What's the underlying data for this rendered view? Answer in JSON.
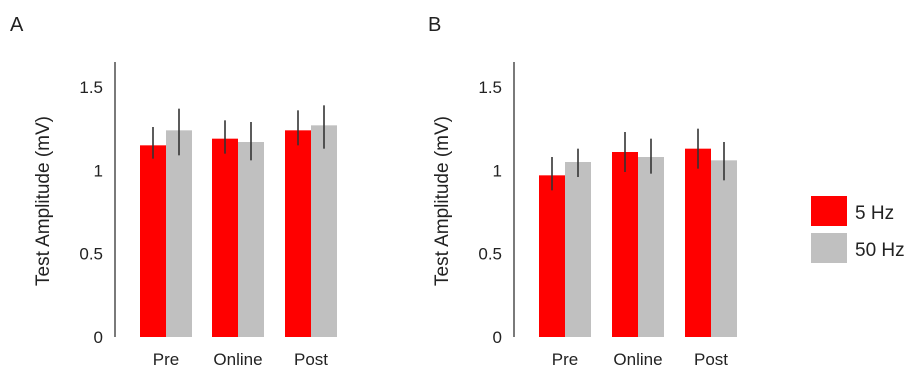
{
  "colors": {
    "series": [
      "#ff0000",
      "#c0c0c0"
    ],
    "axis": "#333333",
    "error_bar": "#333333"
  },
  "legend": {
    "items": [
      {
        "label": "5 Hz"
      },
      {
        "label": "50 Hz"
      }
    ]
  },
  "chart_data": [
    {
      "panel_label": "A",
      "type": "bar",
      "categories": [
        "Pre",
        "Online",
        "Post"
      ],
      "ylabel": "Test Amplitude (mV)",
      "ylim": [
        0,
        1.65
      ],
      "yticks": [
        0,
        0.5,
        1,
        1.5
      ],
      "ytick_labels": [
        "0",
        "0.5",
        "1",
        "1.5"
      ],
      "series": [
        {
          "name": "5 Hz",
          "values": [
            1.15,
            1.19,
            1.24
          ],
          "err_low": [
            1.07,
            1.1,
            1.15
          ],
          "err_high": [
            1.26,
            1.3,
            1.36
          ]
        },
        {
          "name": "50 Hz",
          "values": [
            1.24,
            1.17,
            1.27
          ],
          "err_low": [
            1.09,
            1.06,
            1.13
          ],
          "err_high": [
            1.37,
            1.29,
            1.39
          ]
        }
      ],
      "grid": false,
      "legend_position": "right"
    },
    {
      "panel_label": "B",
      "type": "bar",
      "categories": [
        "Pre",
        "Online",
        "Post"
      ],
      "ylabel": "Test Amplitude (mV)",
      "ylim": [
        0,
        1.65
      ],
      "yticks": [
        0,
        0.5,
        1,
        1.5
      ],
      "ytick_labels": [
        "0",
        "0.5",
        "1",
        "1.5"
      ],
      "series": [
        {
          "name": "5 Hz",
          "values": [
            0.97,
            1.11,
            1.13
          ],
          "err_low": [
            0.88,
            0.99,
            1.01
          ],
          "err_high": [
            1.08,
            1.23,
            1.25
          ]
        },
        {
          "name": "50 Hz",
          "values": [
            1.05,
            1.08,
            1.06
          ],
          "err_low": [
            0.96,
            0.98,
            0.94
          ],
          "err_high": [
            1.13,
            1.19,
            1.17
          ]
        }
      ],
      "grid": false,
      "legend_position": "right"
    }
  ]
}
